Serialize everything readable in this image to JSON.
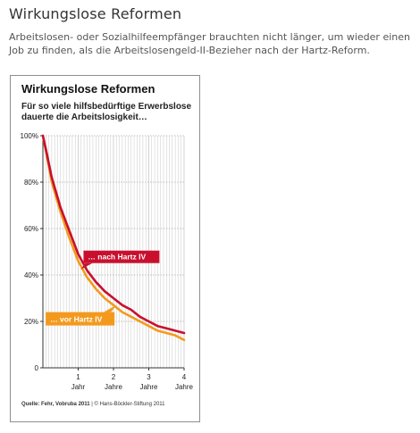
{
  "page": {
    "title": "Wirkungslose Reformen",
    "intro": "Arbeitslosen- oder Sozialhilfeempfänger brauchten nicht länger, um wieder einen Job zu finden, als die Arbeitslosengeld-II-Bezieher nach der Hartz-Reform."
  },
  "colors": {
    "nach": "#c8102e",
    "vor": "#f39a1e",
    "grid": "#c8c8c8",
    "axis": "#333333"
  },
  "chart_data": {
    "type": "line",
    "title": "Wirkungslose Reformen",
    "subtitle": "Für so viele hilfsbedürftige Erwerbslose dauerte die Arbeitslosigkeit…",
    "source_label": "Quelle: Fehr, Vobruba 2011",
    "source_credit": "© Hans-Böckler-Stiftung 2011",
    "xlim": [
      0,
      4
    ],
    "ylim": [
      0,
      100
    ],
    "y_ticks": [
      {
        "value": 0,
        "label": "0"
      },
      {
        "value": 20,
        "label": "20%"
      },
      {
        "value": 40,
        "label": "40%"
      },
      {
        "value": 60,
        "label": "60%"
      },
      {
        "value": 80,
        "label": "80%"
      },
      {
        "value": 100,
        "label": "100%"
      }
    ],
    "x_ticks": [
      {
        "value": 1,
        "number": "1",
        "unit": "Jahr"
      },
      {
        "value": 2,
        "number": "2",
        "unit": "Jahre"
      },
      {
        "value": 3,
        "number": "3",
        "unit": "Jahre"
      },
      {
        "value": 4,
        "number": "4",
        "unit": "Jahre"
      }
    ],
    "grid": true,
    "series": [
      {
        "name": "… nach Hartz IV",
        "color": "#c8102e",
        "x": [
          0,
          0.1,
          0.25,
          0.5,
          0.75,
          1,
          1.25,
          1.5,
          1.75,
          2,
          2.25,
          2.5,
          2.75,
          3,
          3.25,
          3.5,
          3.75,
          4
        ],
        "y": [
          100,
          93,
          82,
          69,
          59,
          49,
          42,
          37,
          33,
          30,
          27,
          25,
          22,
          20,
          18,
          17,
          16,
          15
        ]
      },
      {
        "name": "… vor Hartz IV",
        "color": "#f39a1e",
        "x": [
          0,
          0.1,
          0.25,
          0.5,
          0.75,
          1,
          1.25,
          1.5,
          1.75,
          2,
          2.25,
          2.5,
          2.75,
          3,
          3.25,
          3.5,
          3.75,
          4
        ],
        "y": [
          100,
          92,
          80,
          67,
          56,
          46,
          39,
          34,
          30,
          27,
          24,
          22,
          20,
          18,
          16,
          15,
          14,
          12
        ]
      }
    ]
  }
}
